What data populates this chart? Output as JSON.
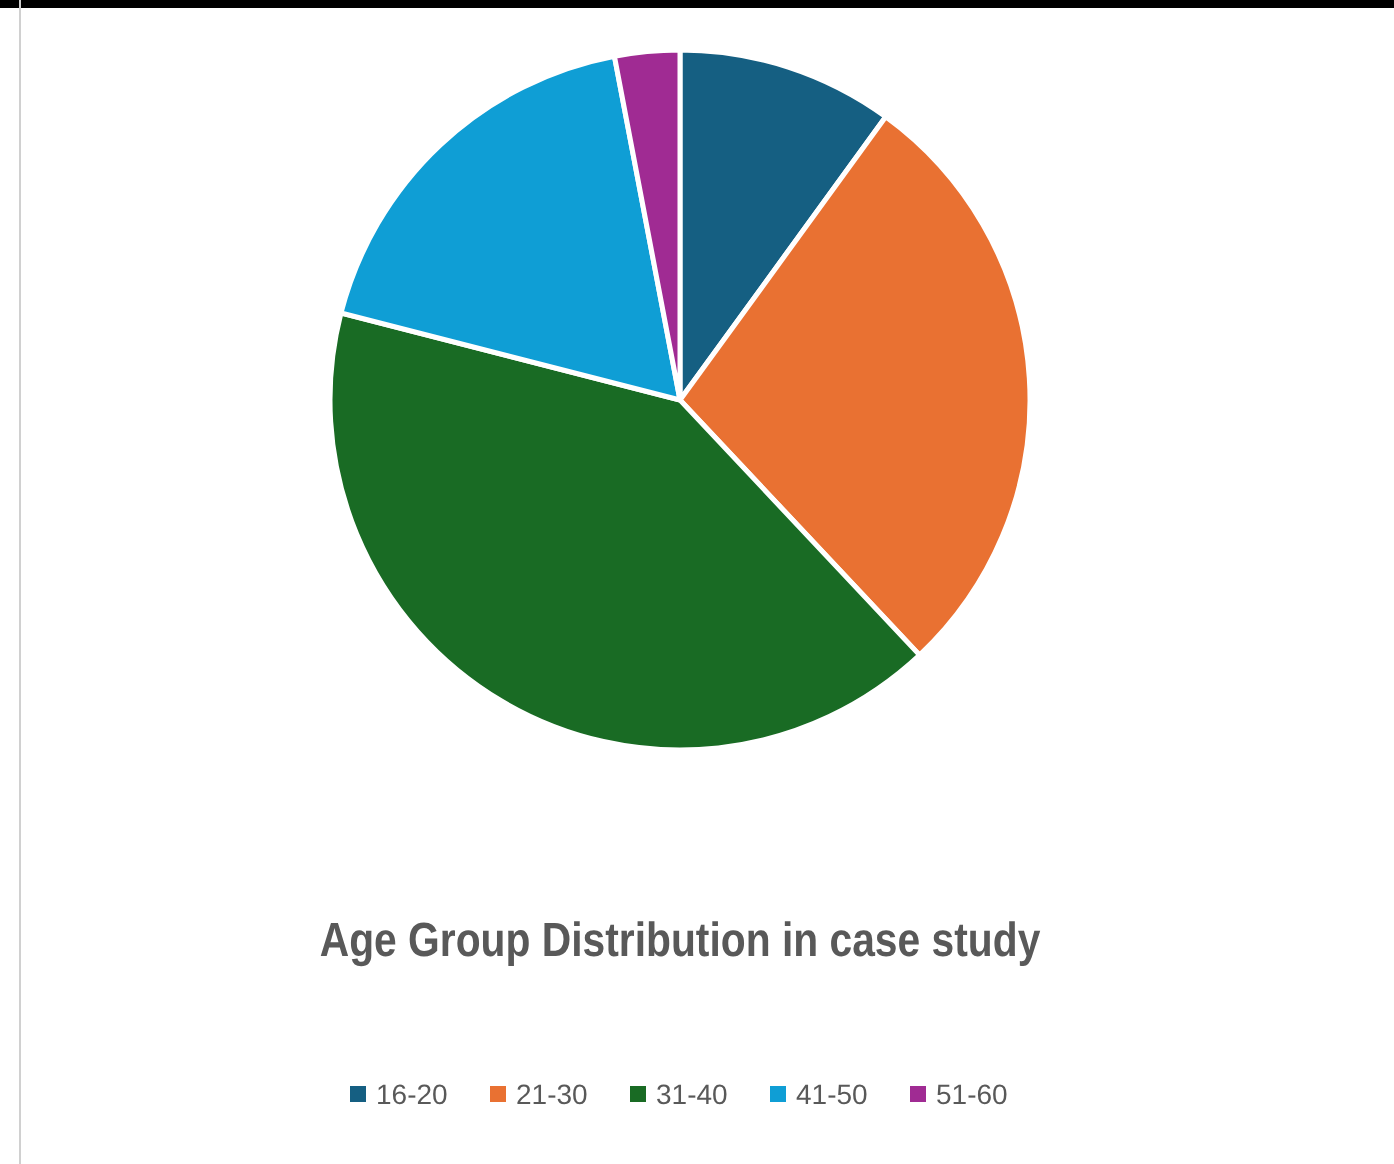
{
  "chart_data": {
    "type": "pie",
    "title": "Age Group Distribution  in case study",
    "categories": [
      "16-20",
      "21-30",
      "31-40",
      "41-50",
      "51-60"
    ],
    "values": [
      10,
      28,
      41,
      18,
      3
    ],
    "colors": [
      "#155f82",
      "#e97132",
      "#196b24",
      "#0f9ed5",
      "#a02b93"
    ],
    "legend": "bottom"
  }
}
